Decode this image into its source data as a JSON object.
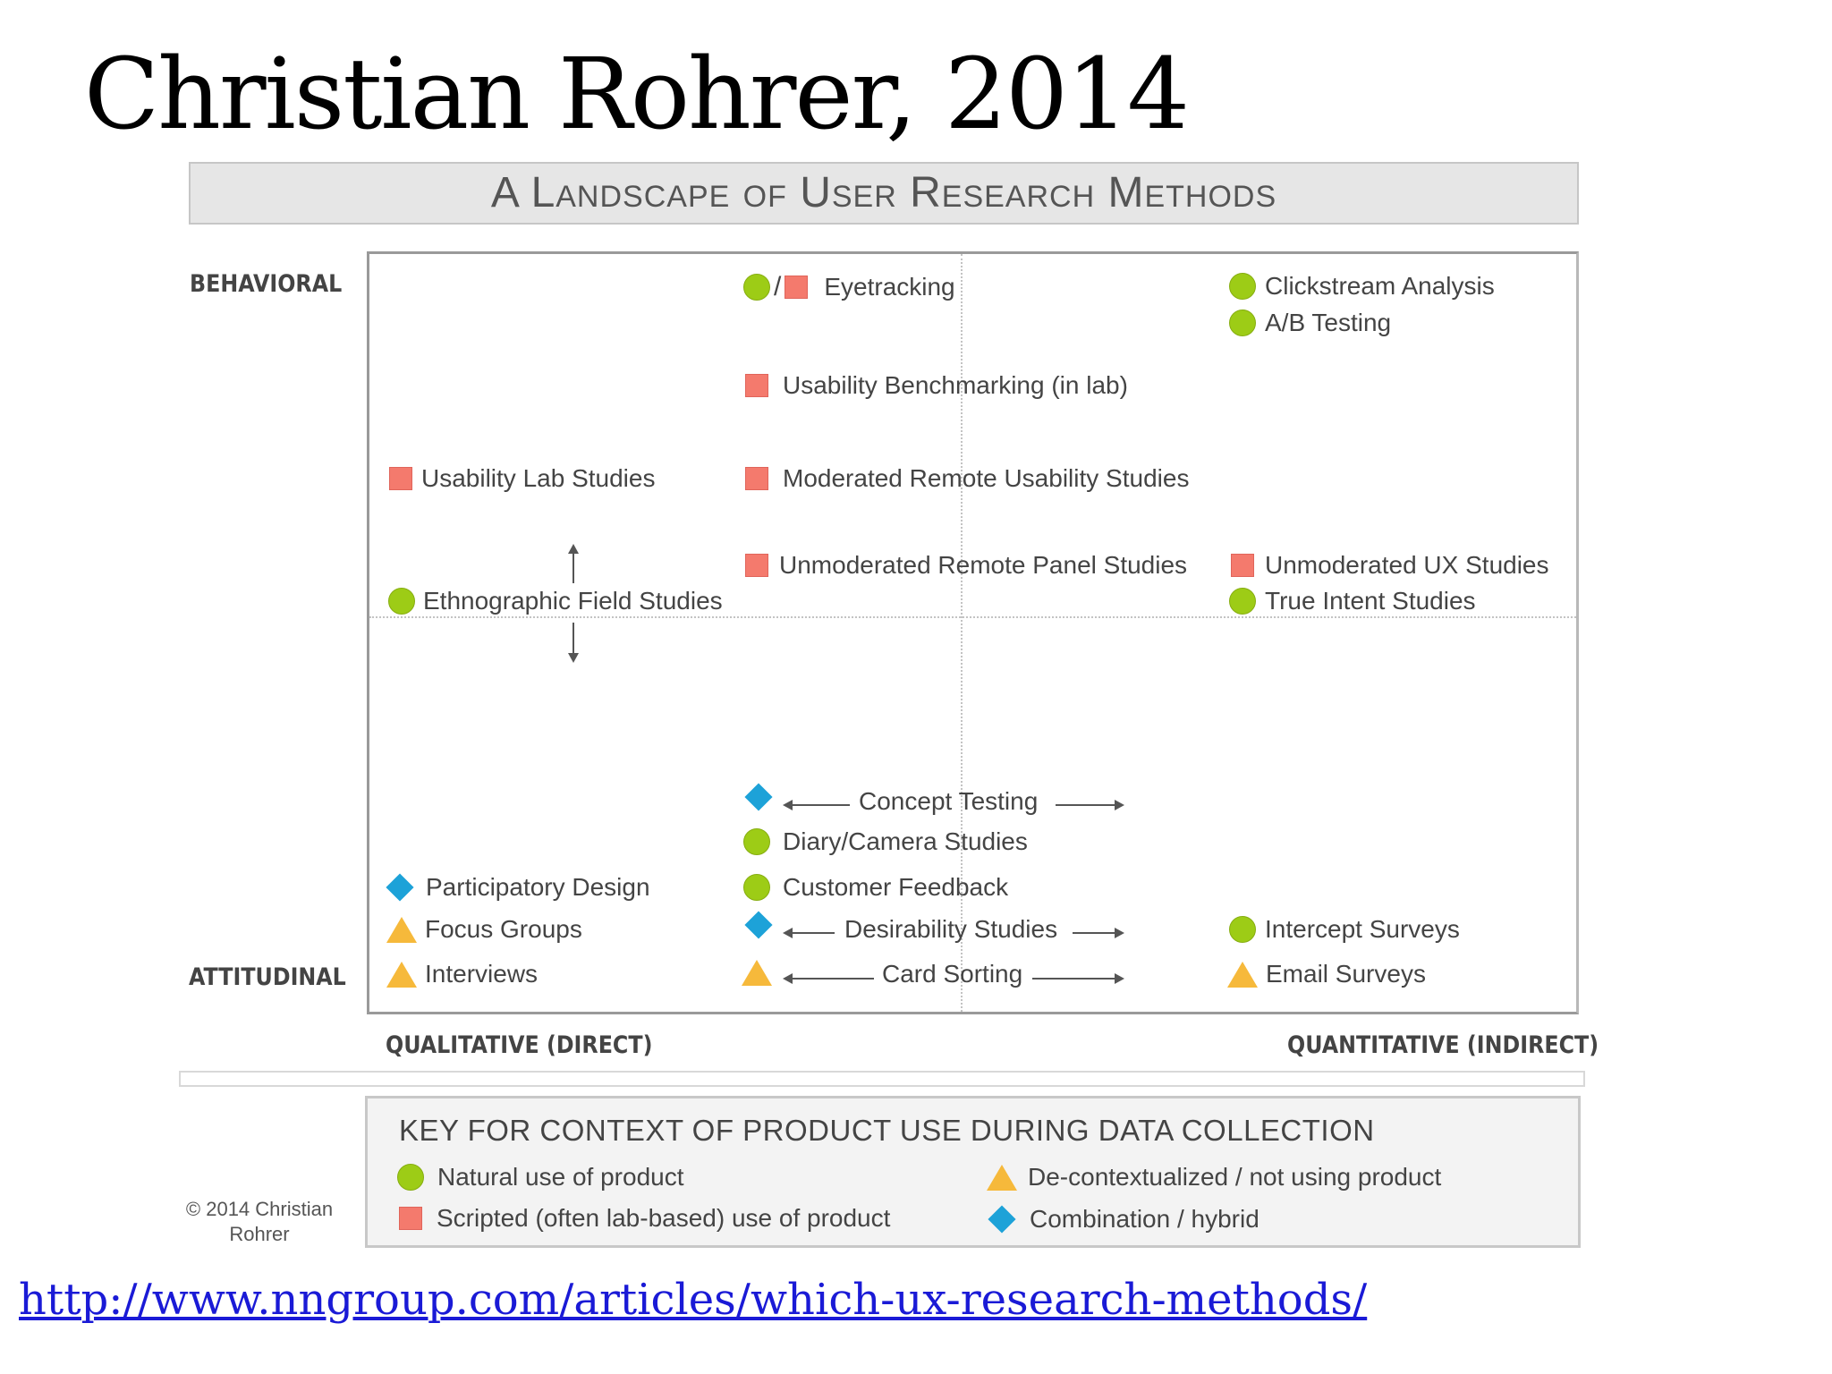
{
  "slide": {
    "title": "Christian Rohrer, 2014",
    "url": "http://www.nngroup.com/articles/which-ux-research-methods/"
  },
  "diagram": {
    "title": "A Landscape of User Research Methods",
    "axes": {
      "top": "BEHAVIORAL",
      "bottom": "ATTITUDINAL",
      "left": "QUALITATIVE (DIRECT)",
      "right": "QUANTITATIVE (INDIRECT)"
    },
    "methods": {
      "eyetracking": "Eyetracking",
      "clickstream": "Clickstream Analysis",
      "ab_testing": "A/B Testing",
      "usability_benchmarking": "Usability Benchmarking (in lab)",
      "usability_lab": "Usability Lab Studies",
      "moderated_remote": "Moderated Remote Usability Studies",
      "unmoderated_panel": "Unmoderated Remote Panel Studies",
      "unmoderated_ux": "Unmoderated UX Studies",
      "ethnographic": "Ethnographic Field Studies",
      "true_intent": "True Intent Studies",
      "concept_testing": "Concept Testing",
      "diary_camera": "Diary/Camera Studies",
      "participatory": "Participatory Design",
      "customer_feedback": "Customer Feedback",
      "focus_groups": "Focus Groups",
      "desirability": "Desirability Studies",
      "intercept": "Intercept Surveys",
      "interviews": "Interviews",
      "card_sorting": "Card Sorting",
      "email_surveys": "Email Surveys"
    },
    "eyetracking_separator": "/",
    "key": {
      "title": "KEY FOR CONTEXT OF PRODUCT USE DURING DATA COLLECTION",
      "natural": "Natural use of product",
      "scripted": "Scripted (often lab-based) use of product",
      "decontextualized": "De-contextualized / not using product",
      "combination": "Combination / hybrid"
    },
    "copyright": "© 2014 Christian Rohrer",
    "colors": {
      "natural": "#9dcc16",
      "scripted": "#f47a6d",
      "decontextualized": "#f6b93b",
      "combination": "#1da2d8"
    },
    "icons": {
      "natural": "green-circle",
      "scripted": "red-square",
      "decontextualized": "orange-triangle",
      "combination": "blue-diamond"
    }
  }
}
